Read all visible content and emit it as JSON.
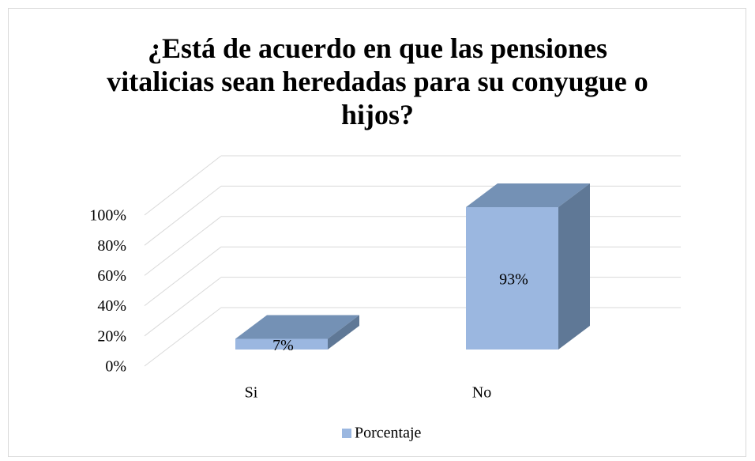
{
  "chart_data": {
    "type": "bar3d",
    "title": "¿Está de acuerdo en que las pensiones vitalicias sean heredadas para su conyugue o hijos?",
    "categories": [
      "Si",
      "No"
    ],
    "series": [
      {
        "name": "Porcentaje",
        "color": "#9bb7e0",
        "values": [
          7,
          93
        ],
        "value_labels": [
          "7%",
          "93%"
        ]
      }
    ],
    "ylim": [
      0,
      100
    ],
    "yticks": [
      {
        "value": 0,
        "label": "0%"
      },
      {
        "value": 20,
        "label": "20%"
      },
      {
        "value": 40,
        "label": "40%"
      },
      {
        "value": 60,
        "label": "60%"
      },
      {
        "value": 80,
        "label": "80%"
      },
      {
        "value": 100,
        "label": "100%"
      }
    ],
    "grid": true,
    "legend": "bottom"
  }
}
